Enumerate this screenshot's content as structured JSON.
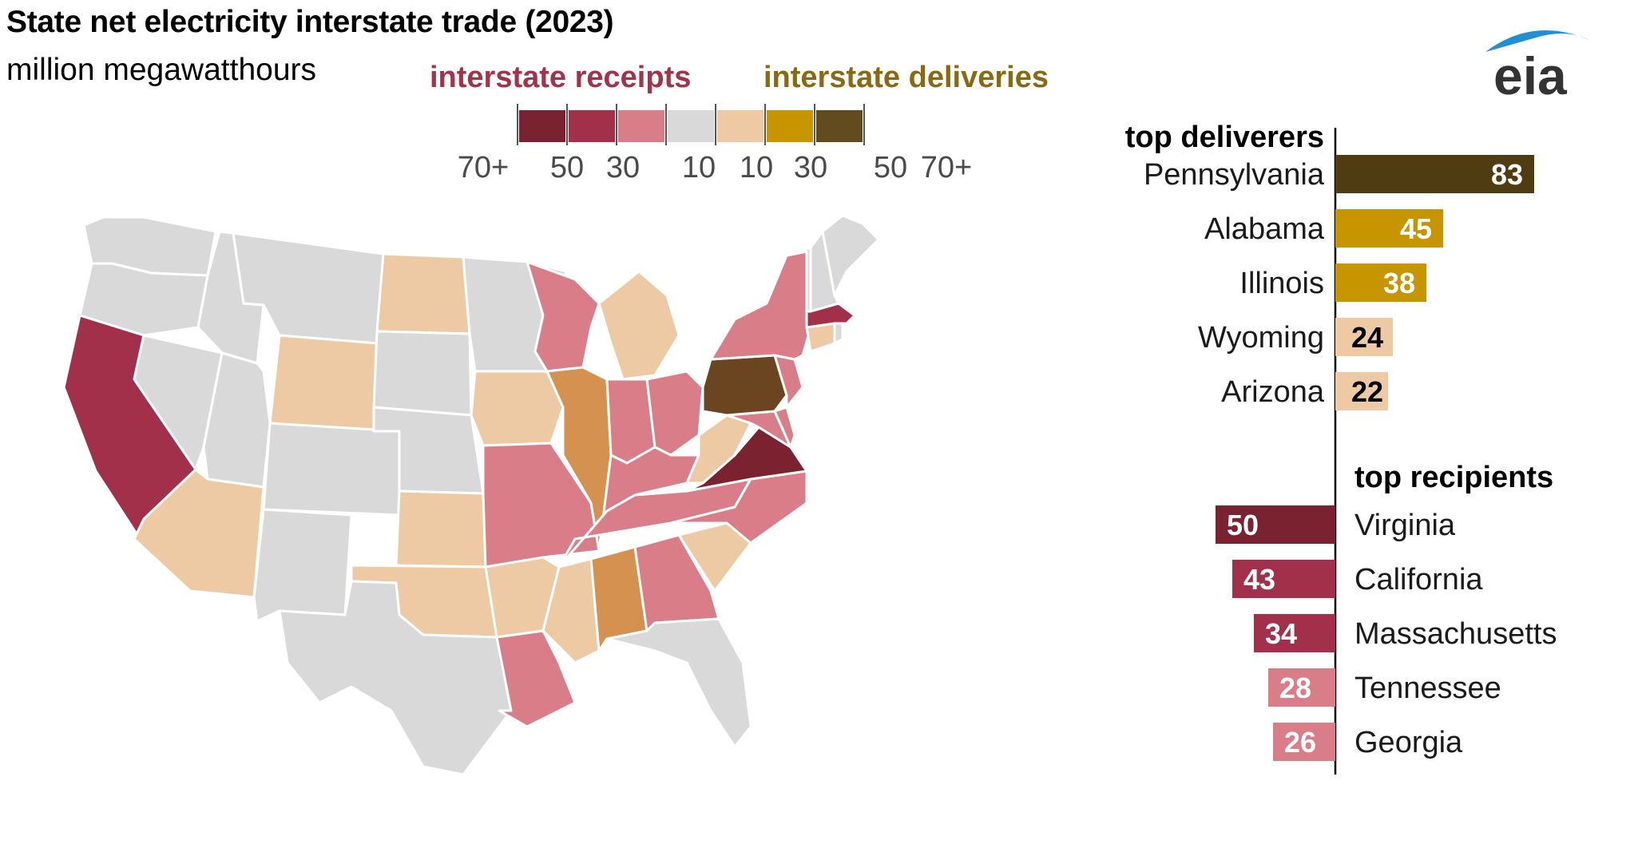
{
  "title": "State net electricity interstate trade (2023)",
  "subtitle": "million megawatthours",
  "legend": {
    "receipts_label": "interstate receipts",
    "deliveries_label": "interstate deliveries",
    "receipts_color": "#a3334a",
    "deliveries_color": "#8a6a10",
    "swatches": [
      {
        "color": "#7b2231",
        "side": "receipts",
        "range": "70+"
      },
      {
        "color": "#a3304a",
        "side": "receipts",
        "range": "50-70"
      },
      {
        "color": "#d97e88",
        "side": "receipts",
        "range": "30-50"
      },
      {
        "color": "#d9d9d9",
        "side": "neutral",
        "range": "10-10"
      },
      {
        "color": "#edc9a4",
        "side": "deliveries",
        "range": "10-30"
      },
      {
        "color": "#c79500",
        "side": "deliveries",
        "range": "30-50"
      },
      {
        "color": "#614b1f",
        "side": "deliveries",
        "range": "70+"
      }
    ],
    "tick_labels": [
      "70+",
      "50",
      "30",
      "10",
      "10",
      "30",
      "50",
      "70+"
    ]
  },
  "logo_text": "eia",
  "chart_data": [
    {
      "type": "bar",
      "title": "top deliverers",
      "categories": [
        "Pennsylvania",
        "Alabama",
        "Illinois",
        "Wyoming",
        "Arizona"
      ],
      "values": [
        83,
        45,
        38,
        24,
        22
      ],
      "colors": [
        "#4f3c10",
        "#c79500",
        "#c79500",
        "#edc9a4",
        "#edc9a4"
      ],
      "label_colors": [
        "#ffffff",
        "#ffffff",
        "#ffffff",
        "#000000",
        "#000000"
      ]
    },
    {
      "type": "bar",
      "title": "top recipients",
      "categories": [
        "Virginia",
        "California",
        "Massachusetts",
        "Tennessee",
        "Georgia"
      ],
      "values": [
        50,
        43,
        34,
        28,
        26
      ],
      "colors": [
        "#7b2231",
        "#a3304a",
        "#a3304a",
        "#d97e88",
        "#d97e88"
      ],
      "label_colors": [
        "#ffffff",
        "#ffffff",
        "#ffffff",
        "#ffffff",
        "#ffffff"
      ]
    }
  ],
  "map": {
    "neutral_color": "#d9d9d9",
    "states": [
      {
        "name": "Washington",
        "color": "#d9d9d9"
      },
      {
        "name": "Oregon",
        "color": "#d9d9d9"
      },
      {
        "name": "California",
        "color": "#a3304a"
      },
      {
        "name": "Nevada",
        "color": "#d9d9d9"
      },
      {
        "name": "Idaho",
        "color": "#d9d9d9"
      },
      {
        "name": "Montana",
        "color": "#d9d9d9"
      },
      {
        "name": "Wyoming",
        "color": "#edc9a4"
      },
      {
        "name": "Utah",
        "color": "#d9d9d9"
      },
      {
        "name": "Arizona",
        "color": "#edc9a4"
      },
      {
        "name": "Colorado",
        "color": "#d9d9d9"
      },
      {
        "name": "New Mexico",
        "color": "#d9d9d9"
      },
      {
        "name": "North Dakota",
        "color": "#edc9a4"
      },
      {
        "name": "South Dakota",
        "color": "#d9d9d9"
      },
      {
        "name": "Nebraska",
        "color": "#d9d9d9"
      },
      {
        "name": "Kansas",
        "color": "#edc9a4"
      },
      {
        "name": "Oklahoma",
        "color": "#edc9a4"
      },
      {
        "name": "Texas",
        "color": "#d9d9d9"
      },
      {
        "name": "Minnesota",
        "color": "#d9d9d9"
      },
      {
        "name": "Iowa",
        "color": "#edc9a4"
      },
      {
        "name": "Missouri",
        "color": "#d97e88"
      },
      {
        "name": "Arkansas",
        "color": "#edc9a4"
      },
      {
        "name": "Louisiana",
        "color": "#d97e88"
      },
      {
        "name": "Wisconsin",
        "color": "#d97e88"
      },
      {
        "name": "Illinois",
        "color": "#d4914f"
      },
      {
        "name": "Michigan",
        "color": "#edc9a4"
      },
      {
        "name": "Indiana",
        "color": "#d97e88"
      },
      {
        "name": "Ohio",
        "color": "#d97e88"
      },
      {
        "name": "Kentucky",
        "color": "#d97e88"
      },
      {
        "name": "Tennessee",
        "color": "#d97e88"
      },
      {
        "name": "Mississippi",
        "color": "#edc9a4"
      },
      {
        "name": "Alabama",
        "color": "#d4914f"
      },
      {
        "name": "Georgia",
        "color": "#d97e88"
      },
      {
        "name": "Florida",
        "color": "#d9d9d9"
      },
      {
        "name": "South Carolina",
        "color": "#edc9a4"
      },
      {
        "name": "North Carolina",
        "color": "#d97e88"
      },
      {
        "name": "Virginia",
        "color": "#7b2231"
      },
      {
        "name": "West Virginia",
        "color": "#edc9a4"
      },
      {
        "name": "Maryland",
        "color": "#d97e88"
      },
      {
        "name": "Delaware",
        "color": "#d97e88"
      },
      {
        "name": "Pennsylvania",
        "color": "#6b4420"
      },
      {
        "name": "New Jersey",
        "color": "#d97e88"
      },
      {
        "name": "New York",
        "color": "#d97e88"
      },
      {
        "name": "Connecticut",
        "color": "#edc9a4"
      },
      {
        "name": "Rhode Island",
        "color": "#d9d9d9"
      },
      {
        "name": "Massachusetts",
        "color": "#a3304a"
      },
      {
        "name": "Vermont",
        "color": "#d9d9d9"
      },
      {
        "name": "New Hampshire",
        "color": "#d9d9d9"
      },
      {
        "name": "Maine",
        "color": "#d9d9d9"
      }
    ]
  }
}
